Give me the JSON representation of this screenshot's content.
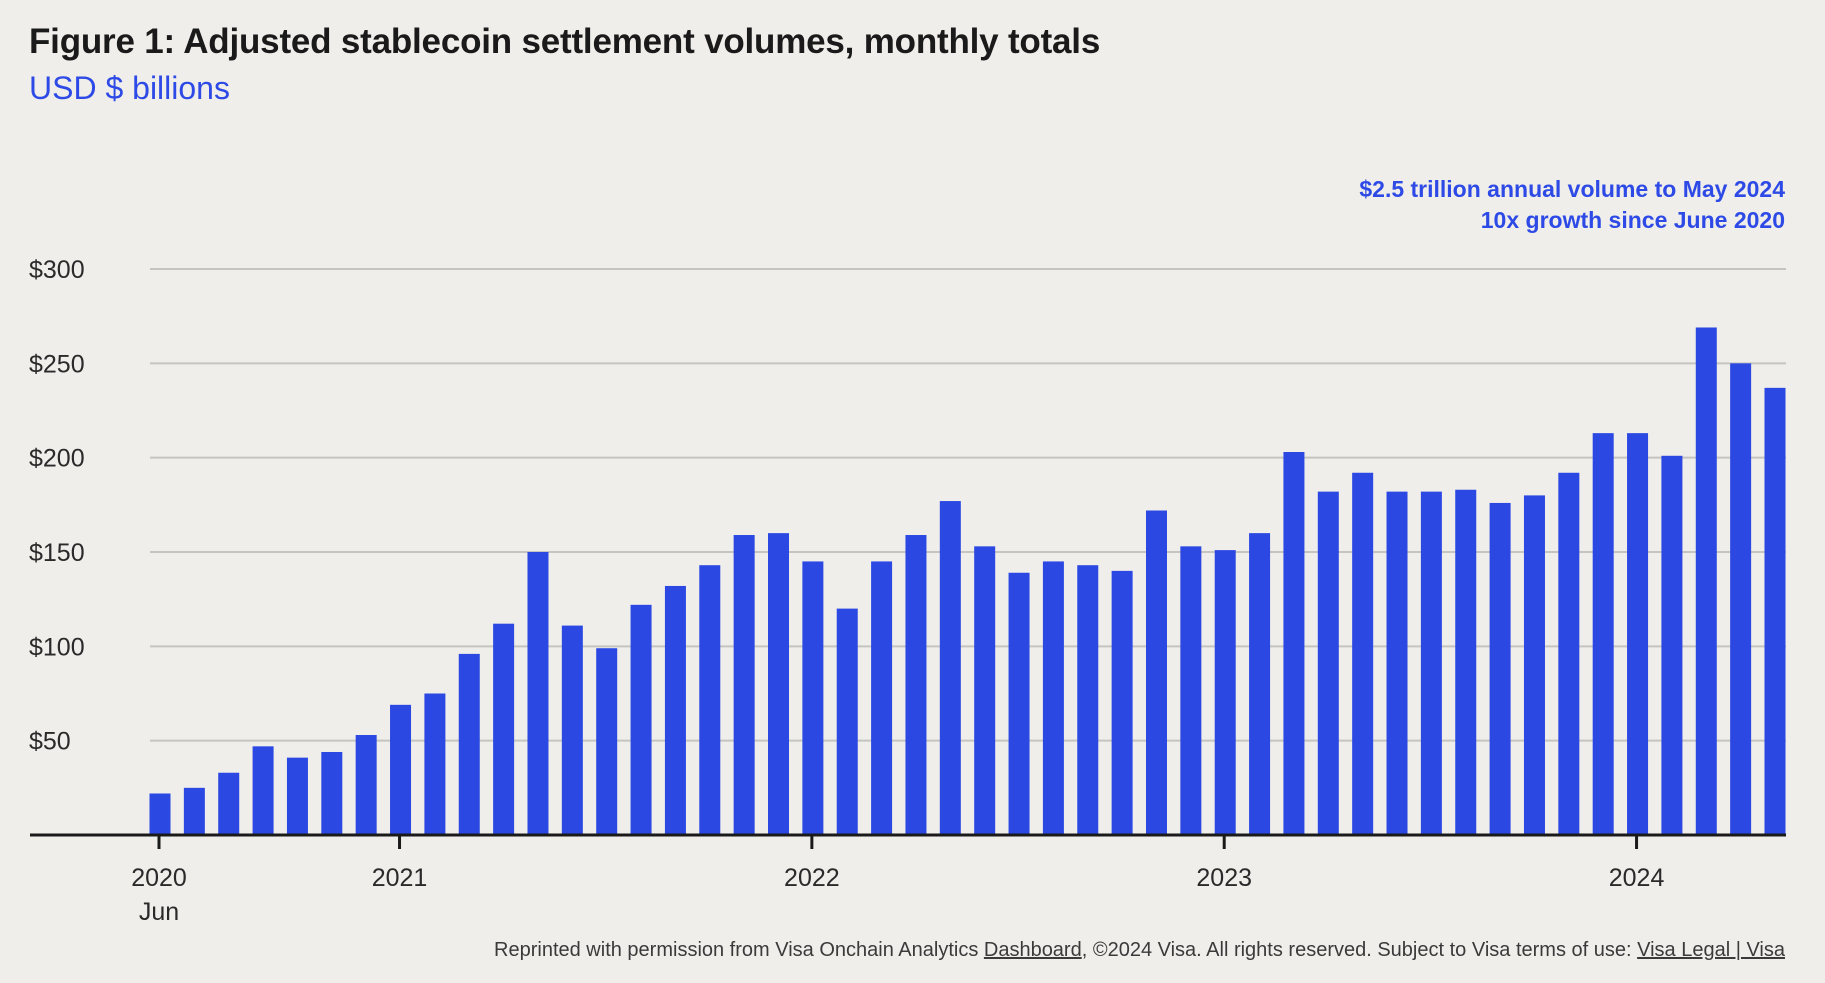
{
  "header": {
    "title": "Figure 1: Adjusted stablecoin settlement volumes, monthly totals",
    "subtitle": "USD $ billions"
  },
  "annotation": {
    "line1": "$2.5 trillion annual volume to May 2024",
    "line2": "10x growth since June 2020"
  },
  "footer": {
    "prefix": "Reprinted with permission from Visa Onchain Analytics ",
    "dashboard_link": "Dashboard",
    "middle": ", ©2024 Visa.  All rights reserved. Subject to Visa terms of use: ",
    "legal_link": "Visa Legal | Visa"
  },
  "colors": {
    "bar": "#2b48e3",
    "accent": "#2e4ae6",
    "grid": "#c4c4c0",
    "axis": "#1a1a1a",
    "background": "#efeeeb"
  },
  "chart_data": {
    "type": "bar",
    "title": "Figure 1: Adjusted stablecoin settlement volumes, monthly totals",
    "ylabel": "USD $ billions",
    "xlabel": "",
    "ylim": [
      0,
      300
    ],
    "y_ticks": [
      50,
      100,
      150,
      200,
      250,
      300
    ],
    "y_tick_labels": [
      "$50",
      "$100",
      "$150",
      "$200",
      "$250",
      "$300"
    ],
    "grid": true,
    "categories": [
      "2020-06",
      "2020-07",
      "2020-08",
      "2020-09",
      "2020-10",
      "2020-11",
      "2020-12",
      "2021-01",
      "2021-02",
      "2021-03",
      "2021-04",
      "2021-05",
      "2021-06",
      "2021-07",
      "2021-08",
      "2021-09",
      "2021-10",
      "2021-11",
      "2021-12",
      "2022-01",
      "2022-02",
      "2022-03",
      "2022-04",
      "2022-05",
      "2022-06",
      "2022-07",
      "2022-08",
      "2022-09",
      "2022-10",
      "2022-11",
      "2022-12",
      "2023-01",
      "2023-02",
      "2023-03",
      "2023-04",
      "2023-05",
      "2023-06",
      "2023-07",
      "2023-08",
      "2023-09",
      "2023-10",
      "2023-11",
      "2023-12",
      "2024-01",
      "2024-02",
      "2024-03",
      "2024-04",
      "2024-05"
    ],
    "values": [
      22,
      25,
      33,
      47,
      41,
      44,
      53,
      69,
      75,
      96,
      112,
      150,
      111,
      99,
      122,
      132,
      143,
      159,
      160,
      145,
      120,
      145,
      159,
      177,
      153,
      139,
      145,
      143,
      140,
      172,
      153,
      151,
      160,
      203,
      182,
      192,
      182,
      182,
      183,
      176,
      180,
      192,
      213,
      213,
      201,
      269,
      250,
      237
    ],
    "x_tick_labels": [
      {
        "label": "2020",
        "sublabel": "Jun",
        "index": 0
      },
      {
        "label": "2021",
        "index": 7
      },
      {
        "label": "2022",
        "index": 19
      },
      {
        "label": "2023",
        "index": 31
      },
      {
        "label": "2024",
        "index": 43
      }
    ]
  }
}
